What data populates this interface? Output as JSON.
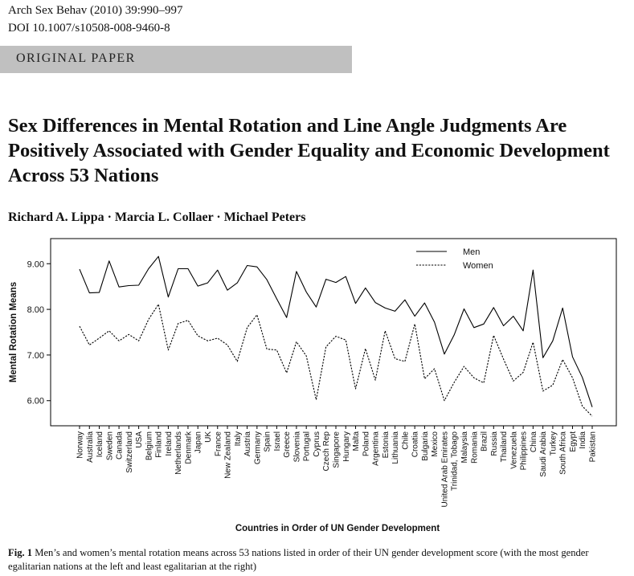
{
  "journal": {
    "citation": "Arch Sex Behav (2010) 39:990–997",
    "doi": "DOI 10.1007/s10508-008-9460-8"
  },
  "section_label": "ORIGINAL PAPER",
  "article": {
    "title": "Sex Differences in Mental Rotation and Line Angle Judgments Are Positively Associated with Gender Equality and Economic Development Across 53 Nations",
    "authors": "Richard A. Lippa · Marcia L. Collaer · Michael Peters"
  },
  "figure": {
    "label": "Fig. 1",
    "caption": "Men’s and women’s mental rotation means across 53 nations listed in order of their UN gender development score (with the most gender egalitarian nations at the left and least egalitarian at the right)"
  },
  "chart_data": {
    "type": "line",
    "xlabel": "Countries in Order of UN Gender Development",
    "ylabel": "Mental Rotation Means",
    "ylim": [
      5.45,
      9.55
    ],
    "yticks": [
      "9.00",
      "8.00",
      "7.00",
      "6.00"
    ],
    "ytick_values": [
      9,
      8,
      7,
      6
    ],
    "legend_position": "top-right",
    "categories": [
      "Norway",
      "Australia",
      "Iceland",
      "Sweden",
      "Canada",
      "Switzerland",
      "USA",
      "Belgium",
      "Finland",
      "Ireland",
      "Netherlands",
      "Denmark",
      "Japan",
      "UK",
      "France",
      "New Zealand",
      "Italy",
      "Austria",
      "Germany",
      "Spain",
      "Israel",
      "Greece",
      "Slovenia",
      "Portugal",
      "Cyprus",
      "Czech Rep",
      "Singapore",
      "Hungary",
      "Malta",
      "Poland",
      "Argentina",
      "Estonia",
      "Lithuania",
      "Chile",
      "Croatia",
      "Bulgaria",
      "Mexico",
      "United Arab Emirates",
      "Trinidad, Tobago",
      "Malaysia",
      "Romania",
      "Brazil",
      "Russia",
      "Thailand",
      "Venezuela",
      "Philippines",
      "China",
      "Saudi Arabia",
      "Turkey",
      "South Africa",
      "Egypt",
      "India",
      "Pakistan"
    ],
    "series": [
      {
        "name": "Men",
        "style": "solid",
        "values": [
          8.88,
          8.36,
          8.37,
          9.06,
          8.49,
          8.52,
          8.53,
          8.89,
          9.16,
          8.27,
          8.89,
          8.89,
          8.51,
          8.58,
          8.86,
          8.42,
          8.58,
          8.96,
          8.93,
          8.65,
          8.23,
          7.82,
          8.83,
          8.38,
          8.05,
          8.66,
          8.59,
          8.72,
          8.13,
          8.47,
          8.15,
          8.03,
          7.96,
          8.21,
          7.85,
          8.14,
          7.72,
          7.02,
          7.44,
          8.01,
          7.6,
          7.68,
          8.04,
          7.64,
          7.85,
          7.53,
          8.86,
          6.94,
          7.31,
          8.03,
          6.96,
          6.51,
          5.86
        ]
      },
      {
        "name": "Women",
        "style": "dashed",
        "values": [
          7.63,
          7.22,
          7.37,
          7.53,
          7.31,
          7.45,
          7.31,
          7.78,
          8.11,
          7.11,
          7.69,
          7.76,
          7.42,
          7.31,
          7.37,
          7.22,
          6.86,
          7.6,
          7.88,
          7.13,
          7.11,
          6.61,
          7.29,
          6.98,
          6.02,
          7.18,
          7.41,
          7.33,
          6.26,
          7.14,
          6.45,
          7.53,
          6.92,
          6.86,
          7.68,
          6.48,
          6.7,
          6.0,
          6.4,
          6.75,
          6.5,
          6.39,
          7.43,
          6.91,
          6.43,
          6.62,
          7.28,
          6.21,
          6.34,
          6.9,
          6.5,
          5.88,
          5.66
        ]
      }
    ]
  }
}
